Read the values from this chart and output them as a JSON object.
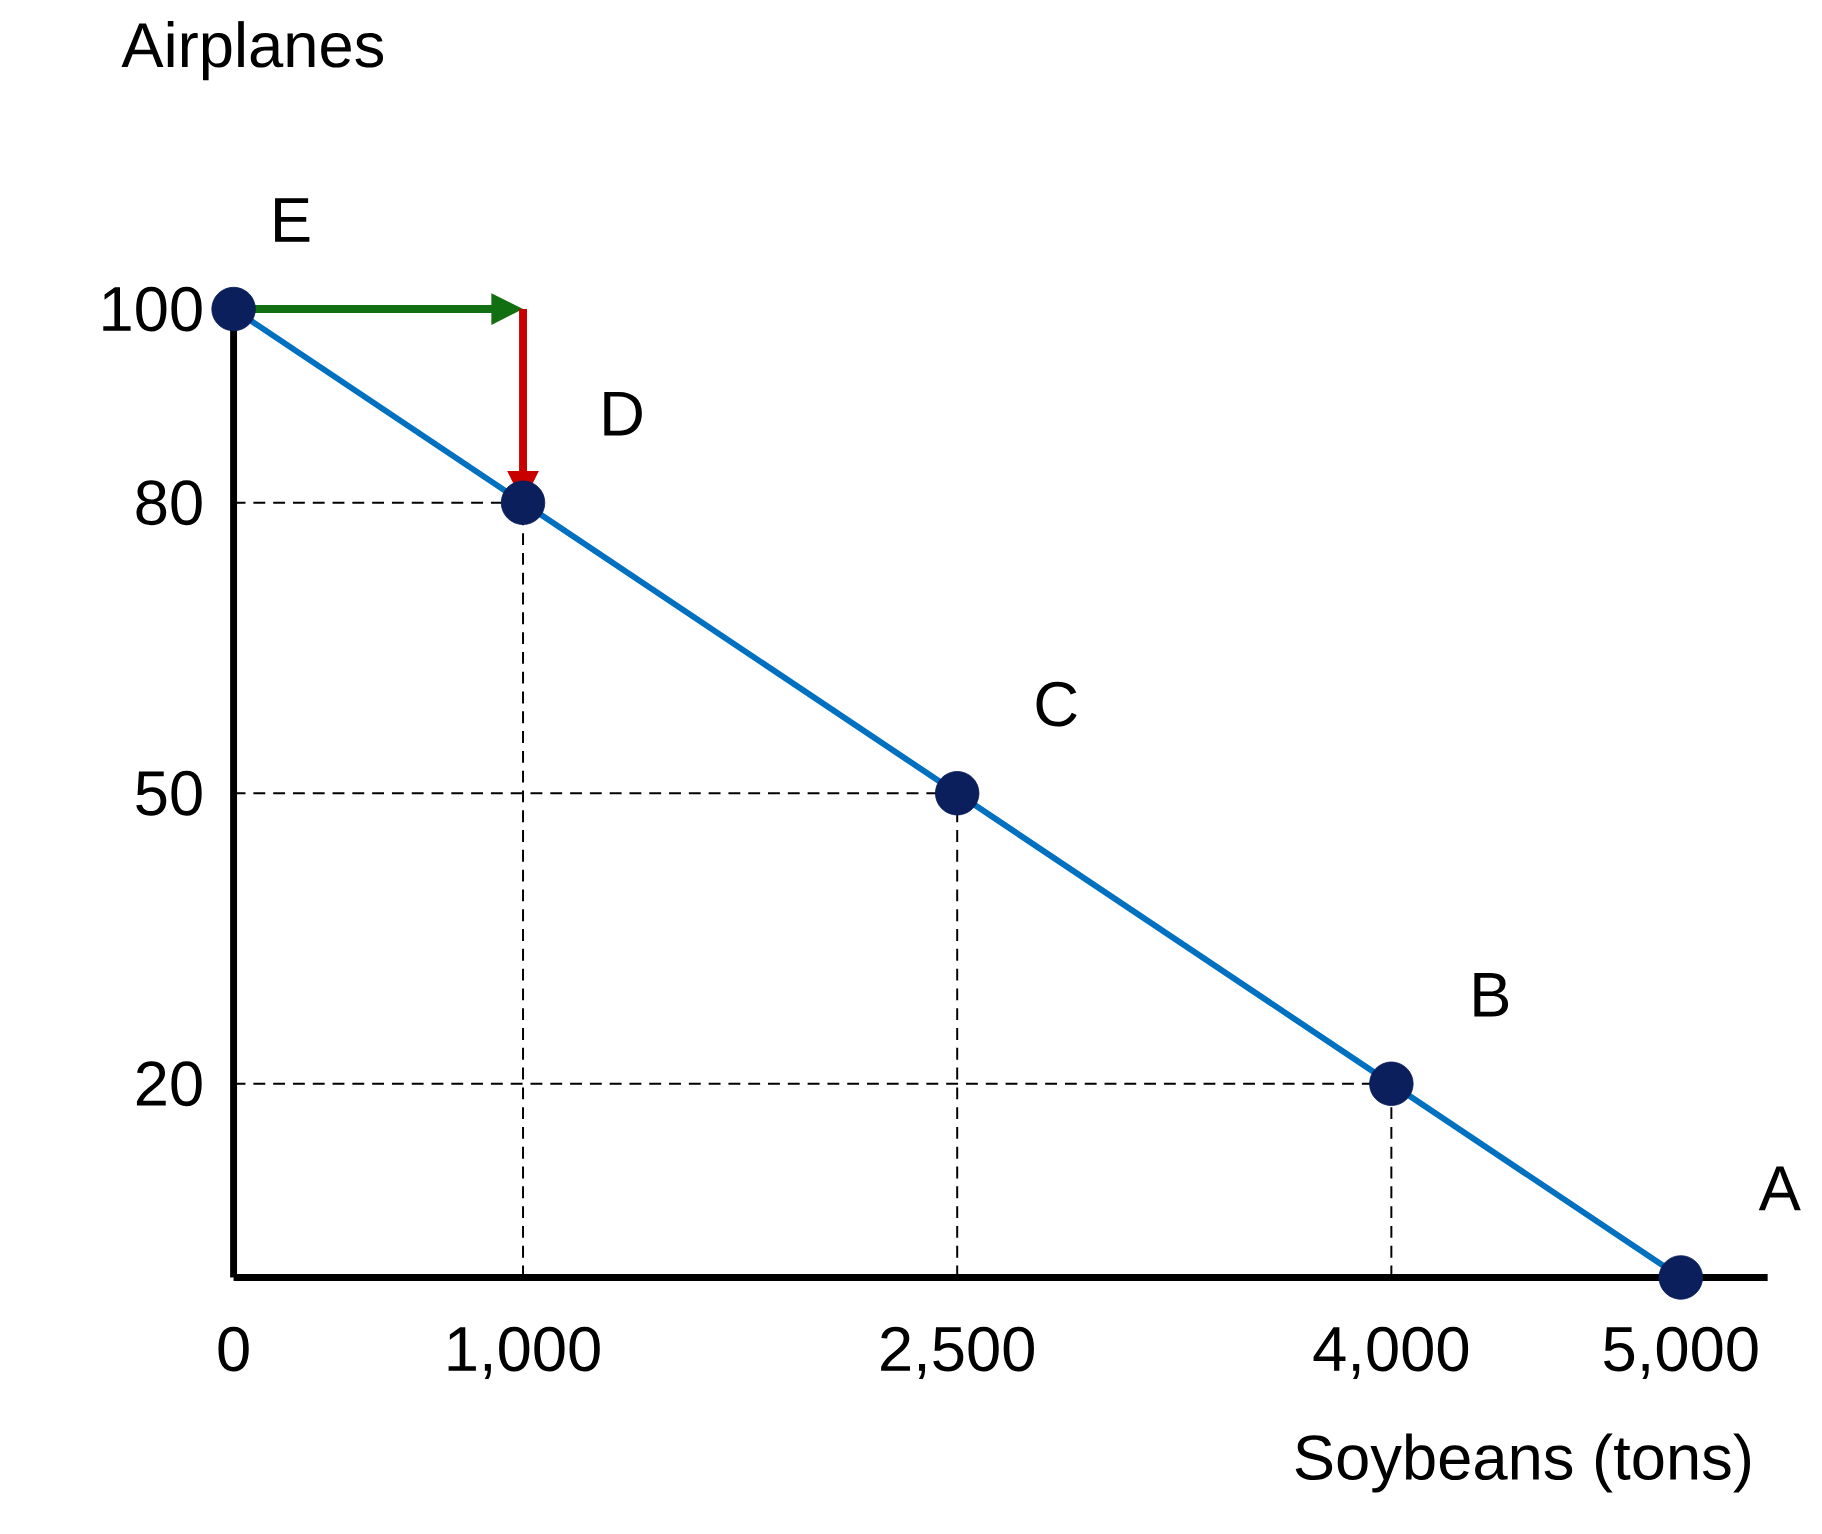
{
  "chart_data": {
    "type": "line",
    "xlabel": "Soybeans (tons)",
    "ylabel": "Airplanes",
    "xlim": [
      0,
      5300
    ],
    "ylim": [
      0,
      102
    ],
    "xticks": [
      0,
      {
        "value": 1000,
        "label": "1,000"
      },
      {
        "value": 2500,
        "label": "2,500"
      },
      {
        "value": 4000,
        "label": "4,000"
      },
      {
        "value": 5000,
        "label": "5,000"
      }
    ],
    "yticks": [
      20,
      50,
      80,
      100
    ],
    "series": [
      {
        "color": "#0070c0",
        "x": [
          0,
          1000,
          2500,
          4000,
          5000
        ],
        "values": [
          100,
          80,
          50,
          20,
          0
        ]
      },
      {
        "type": "scatter",
        "color": "#0a1f5c",
        "marker": "circle",
        "x": [
          0,
          1000,
          2500,
          4000,
          5000
        ],
        "values": [
          100,
          80,
          50,
          20,
          0
        ]
      }
    ],
    "ref_lines": [
      {
        "axis": "x",
        "value": 1000
      },
      {
        "axis": "x",
        "value": 2500
      },
      {
        "axis": "x",
        "value": 4000
      },
      {
        "axis": "y",
        "value": 80
      },
      {
        "axis": "y",
        "value": 50
      },
      {
        "axis": "y",
        "value": 20
      }
    ],
    "annotations": [
      {
        "text": "E",
        "x": 0,
        "y": 100
      },
      {
        "text": "D",
        "x": 1000,
        "y": 80
      },
      {
        "text": "C",
        "x": 2500,
        "y": 50
      },
      {
        "text": "B",
        "x": 4000,
        "y": 20
      },
      {
        "text": "A",
        "x": 5000,
        "y": 0
      }
    ]
  }
}
